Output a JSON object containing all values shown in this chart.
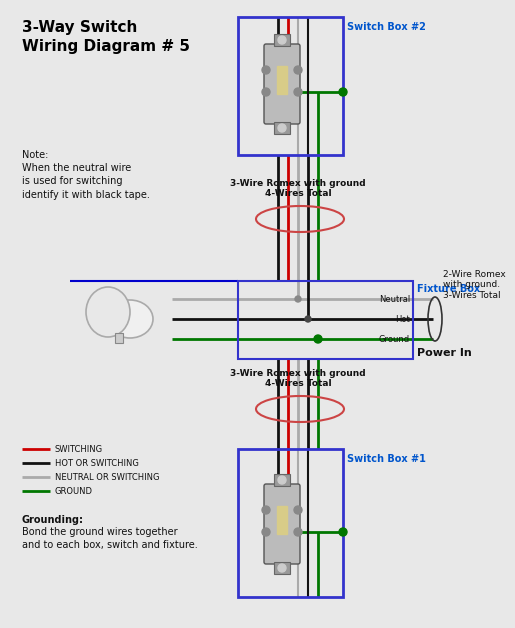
{
  "title": "3-Way Switch\nWiring Diagram # 5",
  "bg_color": "#e8e8e8",
  "title_color": "#000000",
  "title_fontsize": 11,
  "switch_box_color": "#3333cc",
  "fixture_box_color": "#3333cc",
  "switch_box2_label": "Switch Box #2",
  "switch_box1_label": "Switch Box #1",
  "fixture_box_label": "Fixture Box",
  "label_color": "#0055cc",
  "wire_black": "#111111",
  "wire_red": "#cc0000",
  "wire_gray": "#aaaaaa",
  "wire_green": "#007700",
  "wire_blue": "#0000cc",
  "note_text": "Note:\nWhen the neutral wire\nis used for switching\nidentify it with black tape.",
  "romex_top_label": "3-Wire Romex with ground\n4-Wires Total",
  "romex_bottom_label": "3-Wire Romex with ground\n4-Wires Total",
  "romex_right_label": "2-Wire Romex\nwith ground.\n3-Wires Total",
  "neutral_label": "Neutral",
  "hot_label": "Hot",
  "ground_label": "Ground",
  "power_in_label": "Power In",
  "legend_items": [
    {
      "color": "#cc0000",
      "label": "SWITCHING"
    },
    {
      "color": "#111111",
      "label": "HOT OR SWITCHING"
    },
    {
      "color": "#aaaaaa",
      "label": "NEUTRAL OR SWITCHING"
    },
    {
      "color": "#007700",
      "label": "GROUND"
    }
  ],
  "grounding_text": "Grounding:\nBond the ground wires together\nand to each box, switch and fixture."
}
